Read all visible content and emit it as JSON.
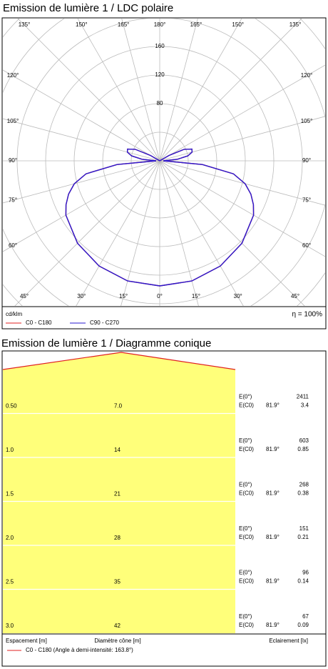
{
  "chart_data": [
    {
      "type": "polar",
      "title": "Emission de lumière 1 / LDC polaire",
      "unit_label": "cd/klm",
      "efficiency": "η = 100%",
      "angles": [
        0,
        15,
        30,
        45,
        60,
        65,
        70,
        75,
        80,
        85,
        90,
        95,
        100,
        105,
        110,
        115,
        120,
        125,
        180
      ],
      "series": [
        {
          "name": "C0 - C180",
          "color": "#e02020",
          "values": [
            175,
            174,
            170,
            163,
            152,
            145,
            136,
            124,
            105,
            60,
            5,
            25,
            40,
            47,
            48,
            38,
            15,
            0,
            0
          ]
        },
        {
          "name": "C90 - C270",
          "color": "#2a1ad0",
          "values": [
            175,
            174,
            170,
            163,
            152,
            145,
            136,
            124,
            105,
            60,
            5,
            25,
            40,
            47,
            48,
            38,
            15,
            0,
            0
          ]
        }
      ],
      "rlim": [
        0,
        200
      ],
      "rticks": [
        80,
        120,
        160
      ],
      "angle_ticks": [
        {
          "value": 0,
          "label": "0°"
        },
        {
          "value": 15,
          "label": "15°"
        },
        {
          "value": 30,
          "label": "30°"
        },
        {
          "value": 45,
          "label": "45°"
        },
        {
          "value": 60,
          "label": "60°"
        },
        {
          "value": 75,
          "label": "75°"
        },
        {
          "value": 90,
          "label": "90°"
        },
        {
          "value": 105,
          "label": "105°"
        },
        {
          "value": 120,
          "label": "120°"
        },
        {
          "value": 135,
          "label": "135°"
        },
        {
          "value": 150,
          "label": "150°"
        },
        {
          "value": 165,
          "label": "165°"
        },
        {
          "value": 180,
          "label": "180°"
        }
      ]
    }
  ],
  "cone": {
    "title": "Emission de lumière 1 / Diagramme conique",
    "e0_label": "E(0°)",
    "ec0_label": "E(C0)",
    "angle": "81.9°",
    "rows": [
      {
        "distance": "0.50",
        "diameter": "7.0",
        "e0": "2411",
        "ec0": "3.4"
      },
      {
        "distance": "1.0",
        "diameter": "14",
        "e0": "603",
        "ec0": "0.85"
      },
      {
        "distance": "1.5",
        "diameter": "21",
        "e0": "268",
        "ec0": "0.38"
      },
      {
        "distance": "2.0",
        "diameter": "28",
        "e0": "151",
        "ec0": "0.21"
      },
      {
        "distance": "2.5",
        "diameter": "35",
        "e0": "96",
        "ec0": "0.14"
      },
      {
        "distance": "3.0",
        "diameter": "42",
        "e0": "67",
        "ec0": "0.09"
      }
    ],
    "footer": {
      "distance": "Espacement [m]",
      "diameter": "Diamètre cône [m]",
      "illuminance": "Eclairement [lx]"
    },
    "legend": "C0 - C180 (Angle à demi-intensité: 163.8°)"
  }
}
